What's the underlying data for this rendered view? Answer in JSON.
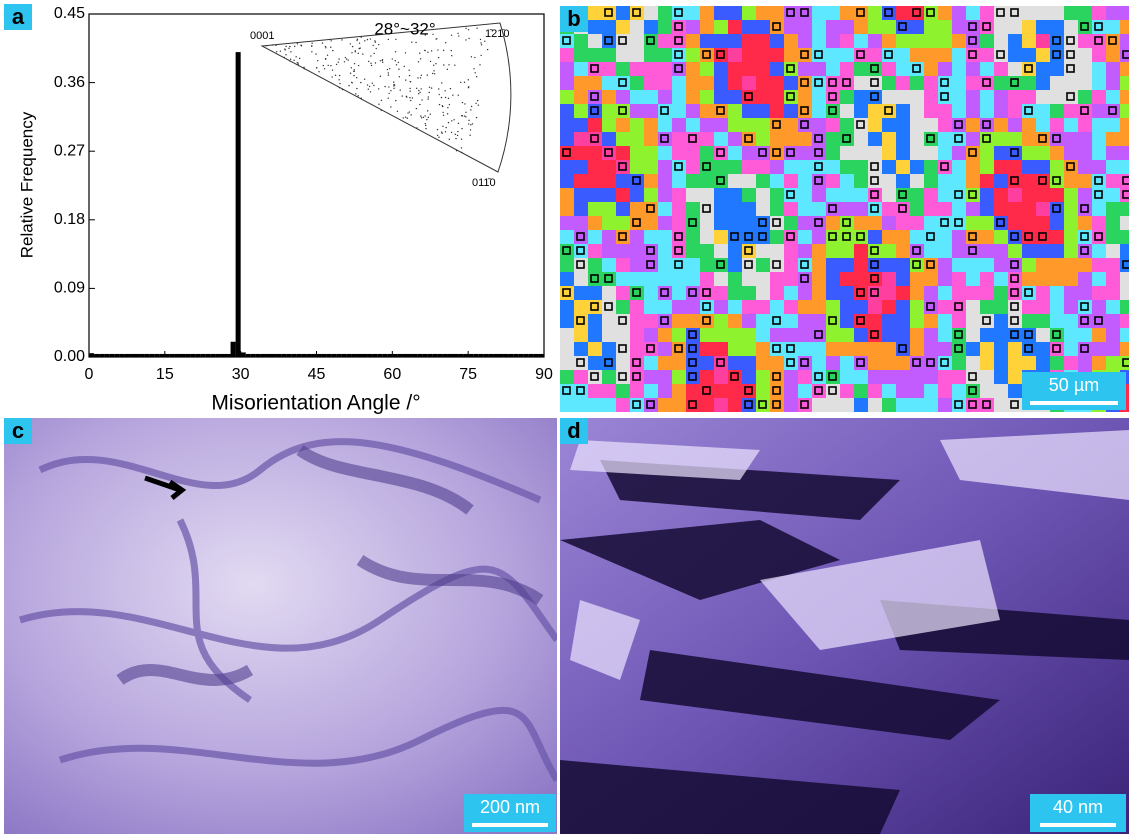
{
  "chart_data": {
    "type": "histogram",
    "x_label": "Misorientation Angle /°",
    "y_label": "Relative Frequency",
    "color": "#000000",
    "bins": [
      0,
      1,
      2,
      3,
      4,
      5,
      6,
      7,
      8,
      9,
      10,
      11,
      12,
      13,
      14,
      15,
      16,
      17,
      18,
      19,
      20,
      21,
      22,
      23,
      24,
      25,
      26,
      27,
      28,
      29,
      30,
      31,
      32,
      33,
      34,
      35,
      36,
      37,
      38,
      39,
      40,
      41,
      42,
      43,
      44,
      45,
      46,
      47,
      48,
      49,
      50,
      51,
      52,
      53,
      54,
      55,
      56,
      57,
      58,
      59,
      60,
      61,
      62,
      63,
      64,
      65,
      66,
      67,
      68,
      69,
      70,
      71,
      72,
      73,
      74,
      75,
      76,
      77,
      78,
      79,
      80,
      81,
      82,
      83,
      84,
      85,
      86,
      87,
      88,
      89,
      90
    ],
    "values": [
      0.005,
      0.004,
      0.004,
      0.004,
      0.004,
      0.004,
      0.004,
      0.004,
      0.004,
      0.004,
      0.004,
      0.004,
      0.004,
      0.004,
      0.004,
      0.004,
      0.004,
      0.004,
      0.004,
      0.004,
      0.004,
      0.004,
      0.004,
      0.004,
      0.004,
      0.004,
      0.004,
      0.004,
      0.02,
      0.4,
      0.006,
      0.004,
      0.004,
      0.004,
      0.004,
      0.004,
      0.004,
      0.004,
      0.004,
      0.004,
      0.004,
      0.004,
      0.004,
      0.004,
      0.004,
      0.004,
      0.004,
      0.004,
      0.004,
      0.004,
      0.004,
      0.004,
      0.004,
      0.004,
      0.004,
      0.004,
      0.004,
      0.004,
      0.004,
      0.004,
      0.004,
      0.004,
      0.004,
      0.004,
      0.004,
      0.004,
      0.004,
      0.004,
      0.004,
      0.004,
      0.004,
      0.004,
      0.004,
      0.004,
      0.004,
      0.004,
      0.004,
      0.004,
      0.004,
      0.004,
      0.004,
      0.004,
      0.004,
      0.004,
      0.004,
      0.004,
      0.004,
      0.004,
      0.004,
      0.004
    ],
    "xlim": [
      0,
      90
    ],
    "xticks": [
      0,
      15,
      30,
      45,
      60,
      75,
      90
    ],
    "ylim": [
      0,
      0.45
    ],
    "yticks": [
      {
        "value": 0,
        "label": "0.00"
      },
      0.09,
      0.18,
      0.27,
      0.36,
      0.45
    ],
    "inset": {
      "title": "28°~32°",
      "corner_labels": [
        "0001",
        "1̄21̄0",
        "011̄0"
      ]
    }
  },
  "panel_labels": [
    "a",
    "b",
    "c",
    "d"
  ],
  "scale_bars": [
    "50 µm",
    "200 nm",
    "40 nm"
  ]
}
